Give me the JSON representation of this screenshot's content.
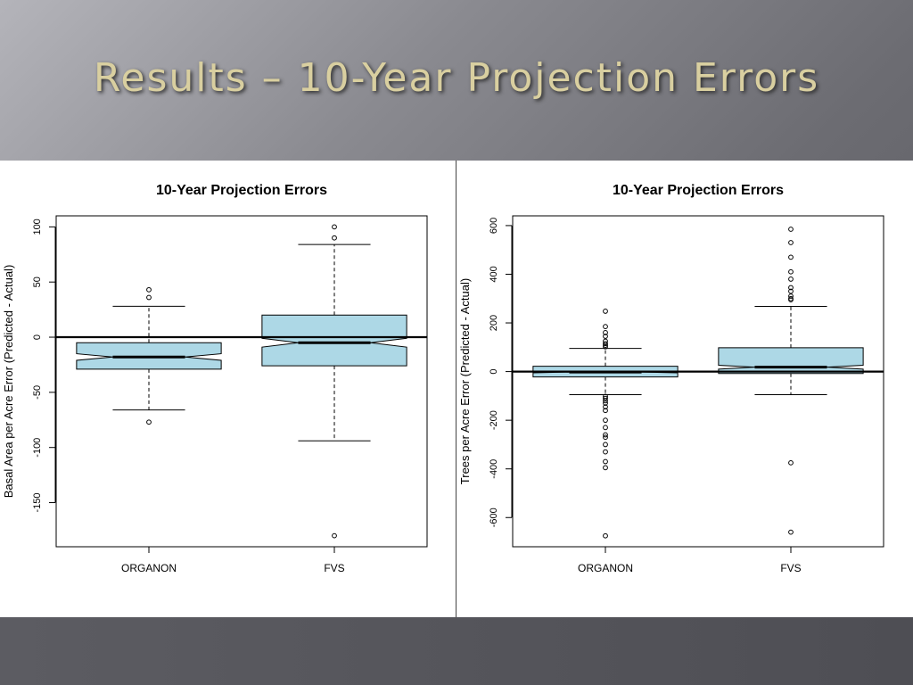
{
  "slide": {
    "title": "Results – 10-Year Projection Errors"
  },
  "colors": {
    "box_fill": "#add8e6",
    "box_stroke": "#000000",
    "title_text": "#d9cfa0"
  },
  "chart_data": [
    {
      "type": "boxplot",
      "title": "10-Year Projection Errors",
      "xlabel": "",
      "ylabel": "Basal Area per Acre Error (Predicted - Actual)",
      "categories": [
        "ORGANON",
        "FVS"
      ],
      "ylim": [
        -190,
        110
      ],
      "yticks": [
        -150,
        -100,
        -50,
        0,
        50,
        100
      ],
      "reference_line": 0,
      "notched": true,
      "boxes": [
        {
          "name": "ORGANON",
          "whisker_low": -66,
          "q1": -29,
          "median": -18,
          "q3": -5,
          "whisker_high": 28,
          "notch_low": -21,
          "notch_high": -15,
          "outliers": [
            43,
            36,
            -77
          ]
        },
        {
          "name": "FVS",
          "whisker_low": -94,
          "q1": -26,
          "median": -5,
          "q3": 20,
          "whisker_high": 84,
          "notch_low": -9,
          "notch_high": -1,
          "outliers": [
            100,
            90,
            -180
          ]
        }
      ]
    },
    {
      "type": "boxplot",
      "title": "10-Year Projection Errors",
      "xlabel": "",
      "ylabel": "Trees per Acre Error (Predicted - Actual)",
      "categories": [
        "ORGANON",
        "FVS"
      ],
      "ylim": [
        -720,
        640
      ],
      "yticks": [
        -600,
        -400,
        -200,
        0,
        200,
        400,
        600
      ],
      "reference_line": 0,
      "notched": true,
      "boxes": [
        {
          "name": "ORGANON",
          "whisker_low": -95,
          "q1": -22,
          "median": -2,
          "q3": 22,
          "whisker_high": 95,
          "notch_low": -5,
          "notch_high": 1,
          "outliers": [
            248,
            185,
            160,
            145,
            125,
            115,
            108,
            102,
            -102,
            -110,
            -120,
            -130,
            -145,
            -160,
            -200,
            -230,
            -260,
            -270,
            -300,
            -330,
            -370,
            -395,
            -675
          ]
        },
        {
          "name": "FVS",
          "whisker_low": -95,
          "q1": -8,
          "median": 18,
          "q3": 98,
          "whisker_high": 268,
          "notch_low": 10,
          "notch_high": 26,
          "outliers": [
            585,
            530,
            470,
            410,
            380,
            345,
            330,
            310,
            300,
            295,
            -375,
            -660
          ]
        }
      ]
    }
  ]
}
